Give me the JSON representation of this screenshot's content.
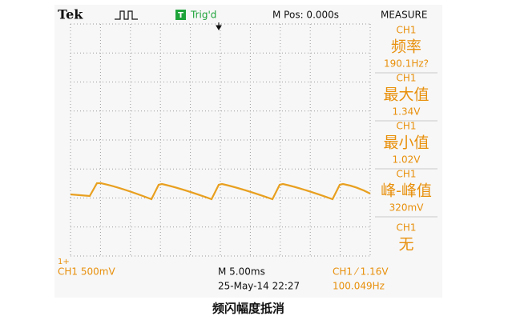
{
  "header": {
    "brand": "Tek",
    "trigger_badge": "T",
    "trigger_status": "Trig'd",
    "position": "M Pos: 0.000s",
    "menu": "MEASURE"
  },
  "measurements": [
    {
      "channel": "CH1",
      "label": "频率",
      "value": "190.1Hz?"
    },
    {
      "channel": "CH1",
      "label": "最大值",
      "value": "1.34V"
    },
    {
      "channel": "CH1",
      "label": "最小值",
      "value": "1.02V"
    },
    {
      "channel": "CH1",
      "label": "峰-峰值",
      "value": "320mV"
    },
    {
      "channel": "CH1",
      "label": "无"
    }
  ],
  "footer": {
    "marker": "1+",
    "channel_scale": "CH1 500mV",
    "timebase": "M 5.00ms",
    "trigger": "CH1 ⁄ 1.16V",
    "date": "25-May-14 22:27",
    "frequency": "100.049Hz"
  },
  "caption": "频闪幅度抵消"
}
